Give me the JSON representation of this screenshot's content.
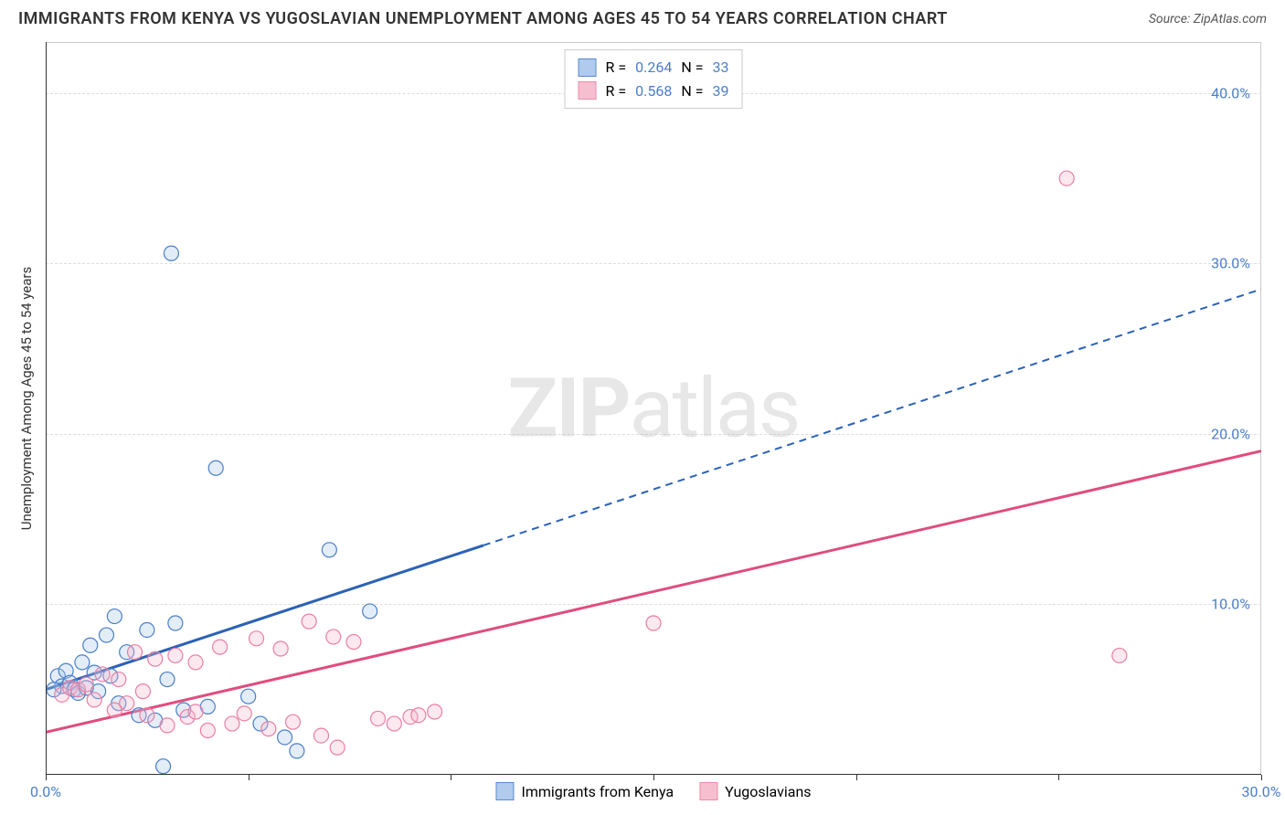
{
  "header": {
    "title": "IMMIGRANTS FROM KENYA VS YUGOSLAVIAN UNEMPLOYMENT AMONG AGES 45 TO 54 YEARS CORRELATION CHART",
    "title_color": "#333333",
    "source_prefix": "Source: ",
    "source_name": "ZipAtlas.com",
    "source_color": "#555555"
  },
  "chart": {
    "type": "scatter",
    "background_color": "#ffffff",
    "axis_color": "#333333",
    "grid_color": "#dddddd",
    "xlim": [
      0,
      30
    ],
    "ylim": [
      0,
      43
    ],
    "x_ticks": [
      0,
      5,
      10,
      15,
      20,
      25,
      30
    ],
    "x_tick_labels": [
      "0.0%",
      "",
      "",
      "",
      "",
      "",
      "30.0%"
    ],
    "y_ticks": [
      10,
      20,
      30,
      40
    ],
    "y_tick_labels": [
      "10.0%",
      "20.0%",
      "30.0%",
      "40.0%"
    ],
    "y_axis_title": "Unemployment Among Ages 45 to 54 years",
    "tick_label_color": "#4a7ec9",
    "axis_title_color": "#333333",
    "marker_radius": 8,
    "marker_stroke_width": 1.2,
    "marker_fill_opacity": 0.32
  },
  "watermark": {
    "part1": "ZIP",
    "part2": "atlas",
    "color": "#bbbbbb"
  },
  "series": {
    "blue": {
      "label": "Immigrants from Kenya",
      "stroke": "#4a7ec9",
      "fill": "#a8c6ea",
      "line_stroke": "#2b62b5",
      "r_label": "R = ",
      "r_value": "0.264",
      "n_label": "  N = ",
      "n_value": "33",
      "regression": {
        "x1": 0,
        "y1": 5.0,
        "x2": 30,
        "y2": 28.5,
        "data_x_max": 10.8
      },
      "points": [
        [
          0.3,
          5.8
        ],
        [
          0.4,
          5.2
        ],
        [
          0.5,
          6.1
        ],
        [
          0.6,
          5.4
        ],
        [
          0.7,
          5.0
        ],
        [
          0.8,
          4.8
        ],
        [
          0.9,
          6.6
        ],
        [
          1.0,
          5.1
        ],
        [
          1.1,
          7.6
        ],
        [
          1.3,
          4.9
        ],
        [
          1.5,
          8.2
        ],
        [
          1.6,
          5.8
        ],
        [
          1.7,
          9.3
        ],
        [
          1.8,
          4.2
        ],
        [
          2.0,
          7.2
        ],
        [
          2.3,
          3.5
        ],
        [
          2.5,
          8.5
        ],
        [
          2.7,
          3.2
        ],
        [
          3.0,
          5.6
        ],
        [
          3.2,
          8.9
        ],
        [
          3.1,
          30.6
        ],
        [
          3.4,
          3.8
        ],
        [
          4.0,
          4.0
        ],
        [
          4.2,
          18.0
        ],
        [
          5.0,
          4.6
        ],
        [
          5.3,
          3.0
        ],
        [
          7.0,
          13.2
        ],
        [
          6.2,
          1.4
        ],
        [
          5.9,
          2.2
        ],
        [
          8.0,
          9.6
        ],
        [
          2.9,
          0.5
        ],
        [
          1.2,
          6.0
        ],
        [
          0.2,
          5.0
        ]
      ]
    },
    "pink": {
      "label": "Yugoslavians",
      "stroke": "#e97fa2",
      "fill": "#f6b9cc",
      "line_stroke": "#e04d7c",
      "r_label": "R = ",
      "r_value": "0.568",
      "n_label": "  N = ",
      "n_value": "39",
      "regression": {
        "x1": 0,
        "y1": 2.5,
        "x2": 30,
        "y2": 19.0,
        "data_x_max": 30
      },
      "points": [
        [
          0.4,
          4.7
        ],
        [
          0.6,
          5.1
        ],
        [
          0.8,
          5.0
        ],
        [
          1.0,
          5.3
        ],
        [
          1.2,
          4.4
        ],
        [
          1.4,
          5.9
        ],
        [
          1.7,
          3.8
        ],
        [
          1.8,
          5.6
        ],
        [
          2.0,
          4.2
        ],
        [
          2.2,
          7.2
        ],
        [
          2.5,
          3.5
        ],
        [
          2.7,
          6.8
        ],
        [
          3.0,
          2.9
        ],
        [
          3.2,
          7.0
        ],
        [
          3.5,
          3.4
        ],
        [
          3.7,
          6.6
        ],
        [
          4.0,
          2.6
        ],
        [
          4.3,
          7.5
        ],
        [
          4.6,
          3.0
        ],
        [
          4.9,
          3.6
        ],
        [
          5.2,
          8.0
        ],
        [
          5.5,
          2.7
        ],
        [
          5.8,
          7.4
        ],
        [
          6.1,
          3.1
        ],
        [
          6.5,
          9.0
        ],
        [
          6.8,
          2.3
        ],
        [
          7.1,
          8.1
        ],
        [
          7.2,
          1.6
        ],
        [
          7.6,
          7.8
        ],
        [
          8.2,
          3.3
        ],
        [
          8.6,
          3.0
        ],
        [
          9.0,
          3.4
        ],
        [
          9.2,
          3.5
        ],
        [
          9.6,
          3.7
        ],
        [
          15.0,
          8.9
        ],
        [
          25.2,
          35.0
        ],
        [
          26.5,
          7.0
        ],
        [
          2.4,
          4.9
        ],
        [
          3.7,
          3.7
        ]
      ]
    }
  },
  "legend_top": {
    "text_color": "#333333",
    "value_color": "#4a7ec9"
  },
  "legend_bottom": {
    "text_color": "#333333"
  }
}
